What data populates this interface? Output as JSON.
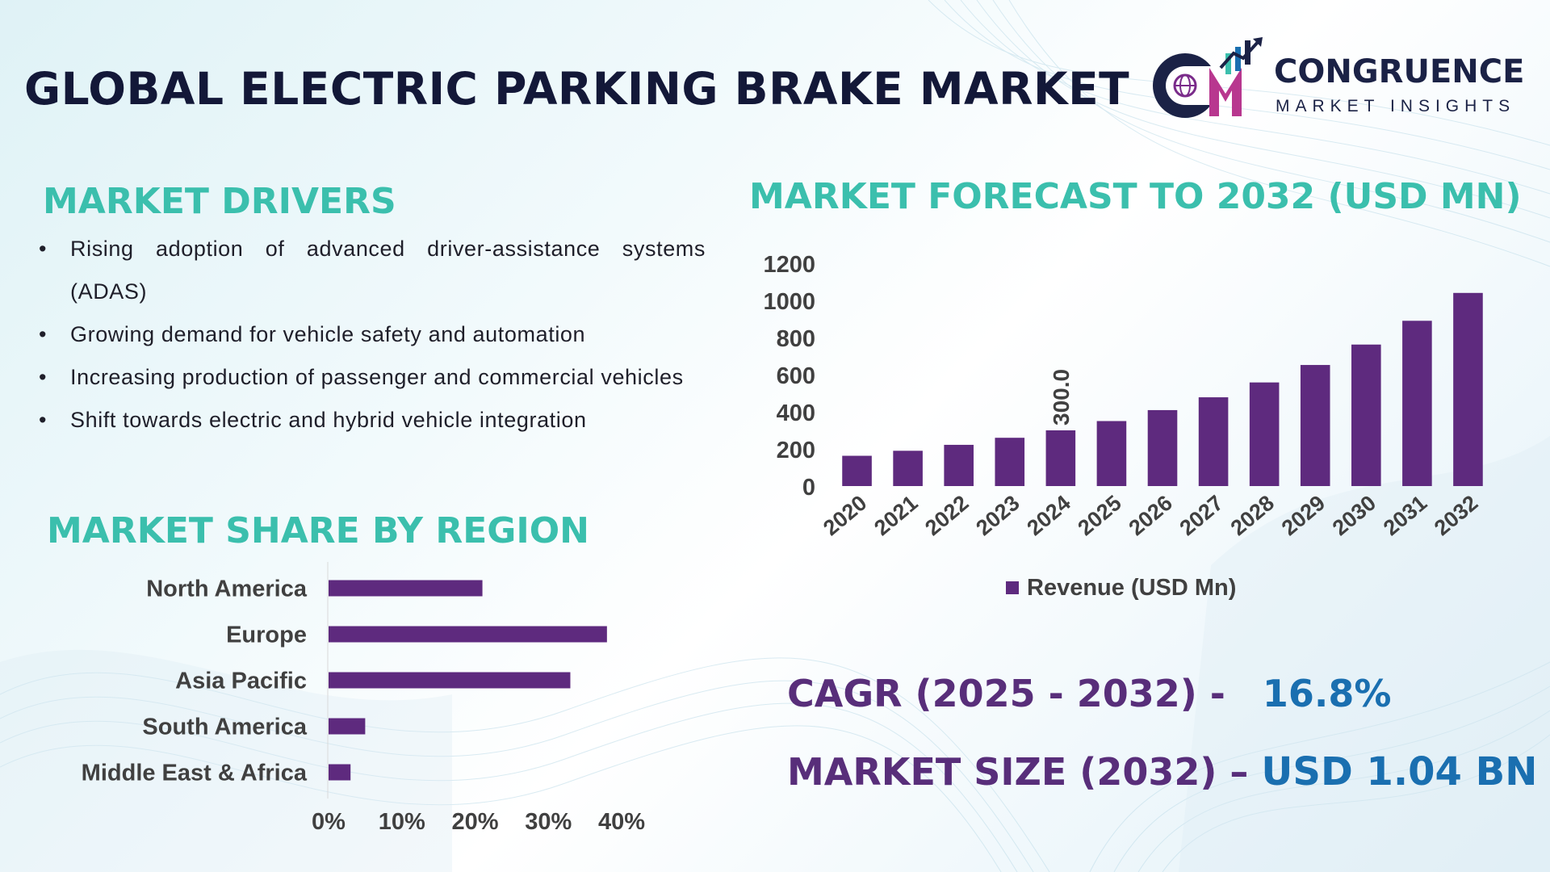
{
  "title": "GLOBAL ELECTRIC PARKING BRAKE MARKET",
  "logo": {
    "name": "CONGRUENCE",
    "subtitle": "MARKET INSIGHTS",
    "mark_text": "CM"
  },
  "drivers": {
    "heading": "MARKET DRIVERS",
    "items": [
      "Rising adoption of advanced driver-assistance systems (ADAS)",
      "Growing demand for vehicle safety and automation",
      "Increasing production of passenger and commercial vehicles",
      "Shift towards electric and hybrid vehicle integration"
    ]
  },
  "region": {
    "heading": "MARKET SHARE BY REGION"
  },
  "forecast": {
    "heading": "MARKET FORECAST TO 2032 (USD MN)"
  },
  "stats": {
    "cagr_label": "CAGR (2025 - 2032) -",
    "cagr_value": "16.8%",
    "size_label": "MARKET SIZE (2032) –",
    "size_value": "USD 1.04 BN"
  },
  "colors": {
    "bar": "#5e2a7e",
    "accent_teal": "#3bbfad",
    "accent_blue": "#1a6fb0",
    "dark_purple": "#582e7a",
    "navy": "#131838"
  },
  "chart_data": [
    {
      "type": "bar",
      "title": "MARKET FORECAST TO 2032 (USD MN)",
      "categories": [
        "2020",
        "2021",
        "2022",
        "2023",
        "2024",
        "2025",
        "2026",
        "2027",
        "2028",
        "2029",
        "2030",
        "2031",
        "2032"
      ],
      "series": [
        {
          "name": "Revenue (USD Mn)",
          "values": [
            163,
            190,
            222,
            260,
            300,
            350,
            409,
            478,
            558,
            652,
            762,
            890,
            1040
          ]
        }
      ],
      "data_labels": [
        {
          "category": "2024",
          "label": "300.0"
        }
      ],
      "y_ticks": [
        "0",
        "200",
        "400",
        "600",
        "800",
        "1000",
        "1200"
      ],
      "ylim": [
        0,
        1200
      ],
      "legend": "bottom",
      "grid": false
    },
    {
      "type": "bar",
      "orientation": "horizontal",
      "title": "MARKET SHARE BY REGION",
      "categories": [
        "North America",
        "Europe",
        "Asia Pacific",
        "South America",
        "Middle East & Africa"
      ],
      "values": [
        21,
        38,
        33,
        5,
        3
      ],
      "unit": "%",
      "x_ticks": [
        "0%",
        "10%",
        "20%",
        "30%",
        "40%"
      ],
      "xlim": [
        0,
        40
      ],
      "grid": false
    }
  ]
}
